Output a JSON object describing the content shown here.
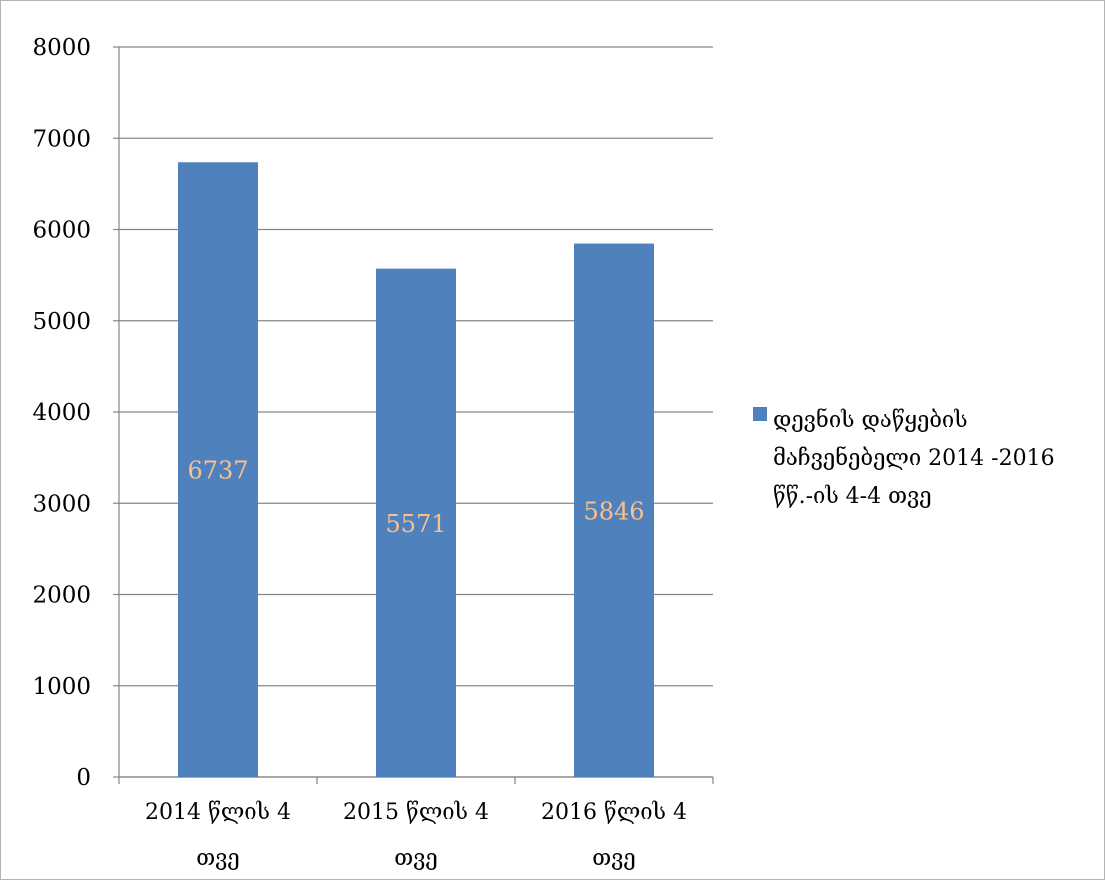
{
  "chart_data": {
    "type": "bar",
    "categories": [
      "2014 წლის 4 თვე",
      "2015 წლის 4 თვე",
      "2016 წლის 4 თვე"
    ],
    "category_lines": [
      [
        "2014 წლის 4",
        "თვე"
      ],
      [
        "2015 წლის 4",
        "თვე"
      ],
      [
        "2016 წლის 4",
        "თვე"
      ]
    ],
    "series": [
      {
        "name": "დევნის დაწყების მაჩვენებელი 2014 -2016 წწ.-ის 4-4 თვე",
        "values": [
          6737,
          5571,
          5846
        ],
        "color": "#4f81bd"
      }
    ],
    "data_labels": [
      "6737",
      "5571",
      "5846"
    ],
    "data_label_color": "#fac090",
    "ylim": [
      0,
      8000
    ],
    "yticks": [
      "0",
      "1000",
      "2000",
      "3000",
      "4000",
      "5000",
      "6000",
      "7000",
      "8000"
    ],
    "grid": true,
    "gridline_color": "#868686",
    "legend_position": "right",
    "title": "",
    "xlabel": "",
    "ylabel": ""
  }
}
